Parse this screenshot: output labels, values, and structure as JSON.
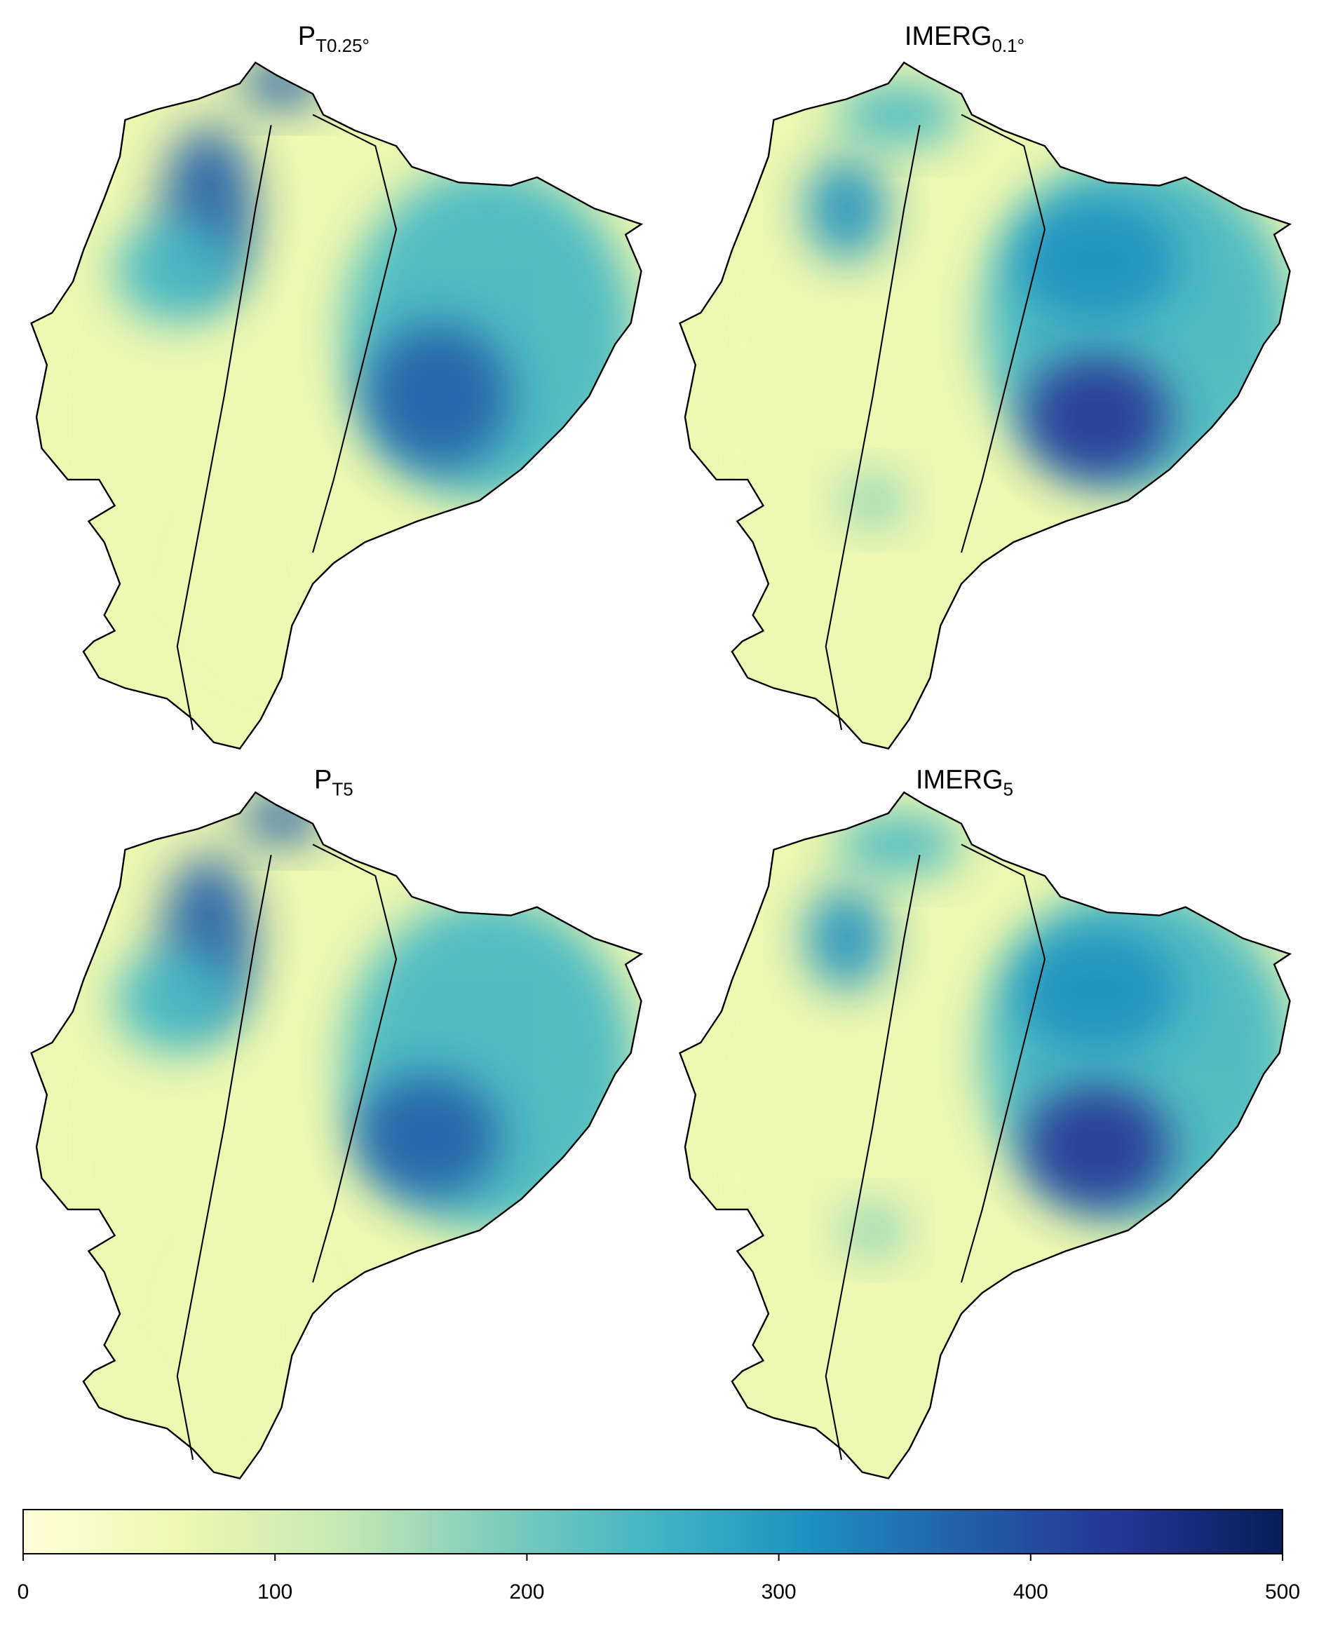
{
  "panels": [
    {
      "title": "P",
      "subscript": "T0.25°"
    },
    {
      "title": "IMERG",
      "subscript": "0.1°"
    },
    {
      "title": "P",
      "subscript": "T5"
    },
    {
      "title": "IMERG",
      "subscript": "5"
    }
  ],
  "colorbar": {
    "lim": [
      0,
      500
    ],
    "ticks": [
      0,
      100,
      200,
      300,
      400,
      500
    ],
    "colors": [
      "#ffffd9",
      "#edf8b1",
      "#c7e9b4",
      "#7fcdbb",
      "#41b6c4",
      "#1d91c0",
      "#225ea8",
      "#253494",
      "#081d58"
    ]
  }
}
